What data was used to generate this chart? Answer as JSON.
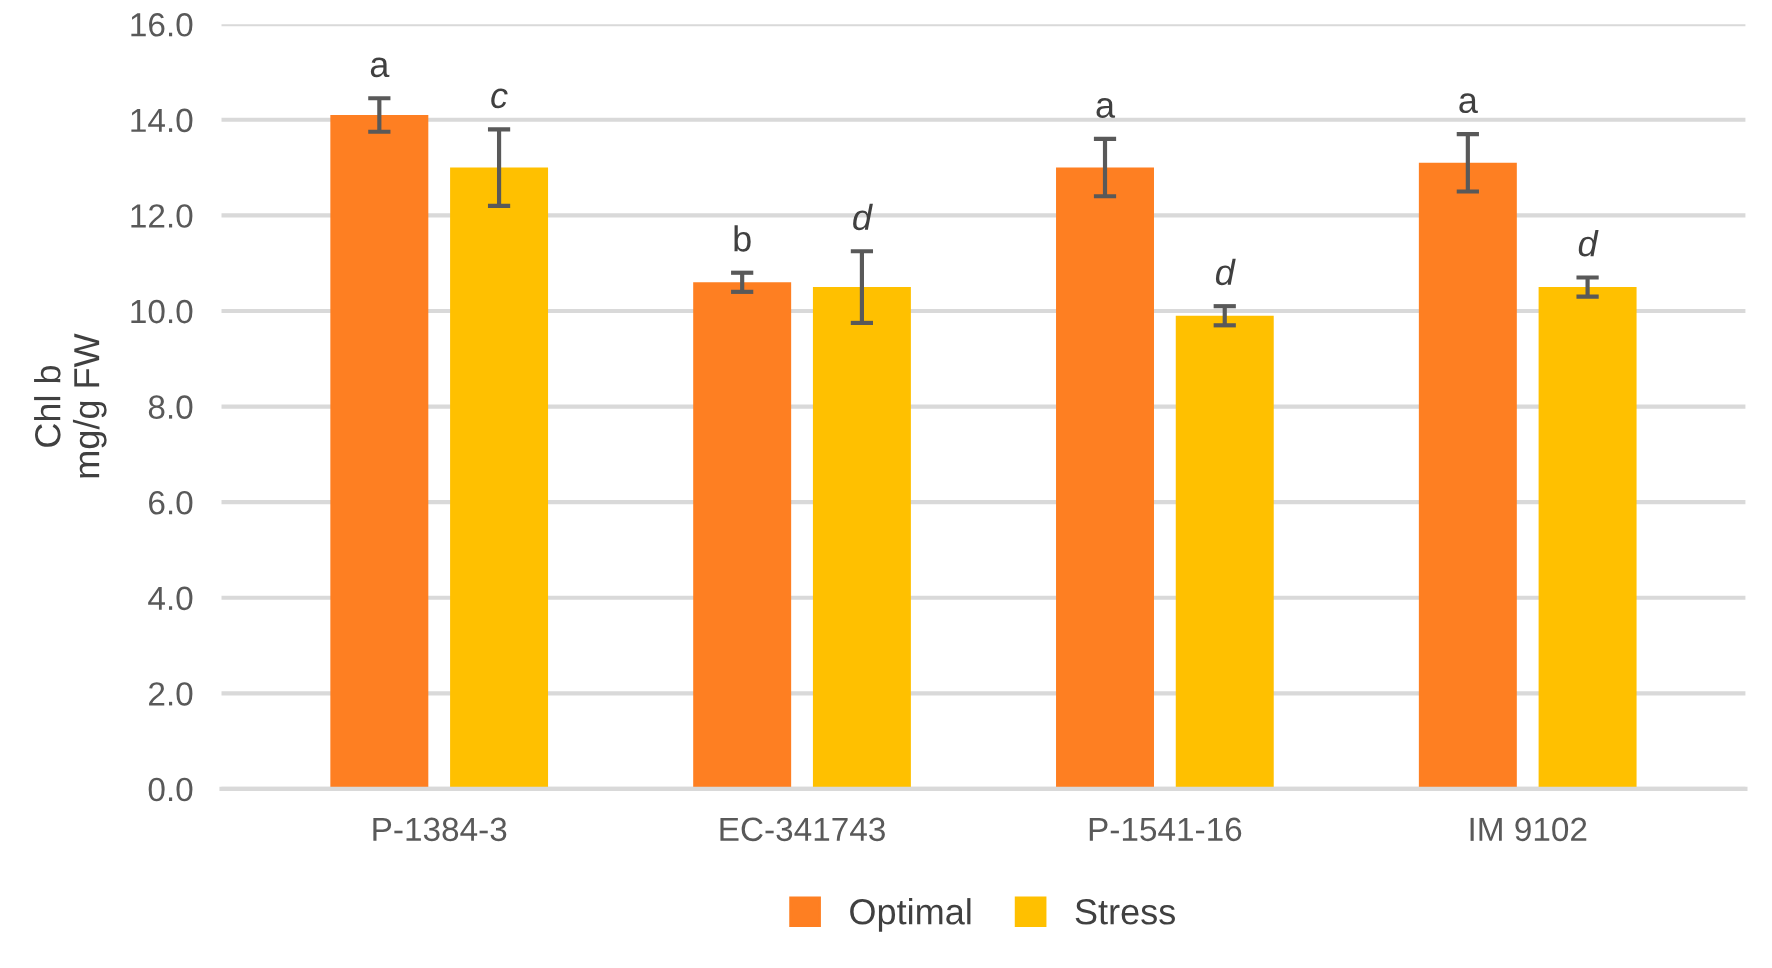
{
  "chart_data": {
    "type": "bar",
    "ylabel": "Chl b\nmg/g FW",
    "categories": [
      "P-1384-3",
      "EC-341743",
      "P-1541-16",
      "IM 9102"
    ],
    "series": [
      {
        "name": "Optimal",
        "color": "#fe7f22",
        "values": [
          14.1,
          10.6,
          13.0,
          13.1
        ],
        "errors": [
          0.35,
          0.2,
          0.6,
          0.6
        ],
        "value_labels": [
          "a",
          "b",
          "a",
          "a"
        ]
      },
      {
        "name": "Stress",
        "color": "#ffc000",
        "values": [
          13.0,
          10.5,
          9.9,
          10.5
        ],
        "errors": [
          0.8,
          0.75,
          0.2,
          0.2
        ],
        "value_labels": [
          "c",
          "d",
          "d",
          "d"
        ]
      }
    ],
    "ylim": [
      0,
      16
    ],
    "yticks": [
      {
        "value": 0,
        "label": "0.0"
      },
      {
        "value": 2,
        "label": "2.0"
      },
      {
        "value": 4,
        "label": "4.0"
      },
      {
        "value": 6,
        "label": "6.0"
      },
      {
        "value": 8,
        "label": "8.0"
      },
      {
        "value": 10,
        "label": "10.0"
      },
      {
        "value": 12,
        "label": "12.0"
      },
      {
        "value": 14,
        "label": "14.0"
      },
      {
        "value": 16,
        "label": "16.0"
      }
    ],
    "grid": "y",
    "legend": "bottom"
  }
}
